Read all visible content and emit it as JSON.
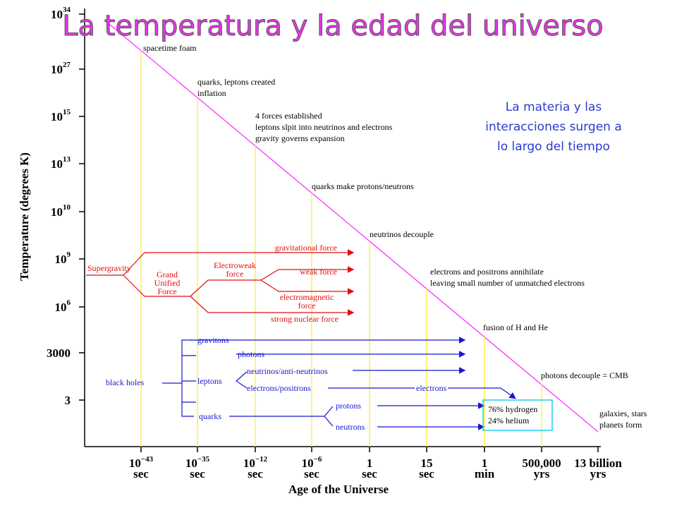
{
  "title": "La temperatura y la edad del universo",
  "note": [
    "La materia y las",
    "interacciones surgen a",
    "lo largo del tiempo"
  ],
  "y_axis": {
    "label": "Temperature (degrees K)",
    "ticks": [
      {
        "base": "10",
        "exp": "34"
      },
      {
        "base": "10",
        "exp": "27"
      },
      {
        "base": "10",
        "exp": "15"
      },
      {
        "base": "10",
        "exp": "13"
      },
      {
        "base": "10",
        "exp": "10"
      },
      {
        "base": "10",
        "exp": "9"
      },
      {
        "base": "10",
        "exp": "6"
      },
      {
        "base": "3000"
      },
      {
        "base": "3"
      }
    ]
  },
  "x_axis": {
    "label": "Age of the Universe",
    "ticks": [
      {
        "base": "10",
        "exp": "−43",
        "unit": "sec"
      },
      {
        "base": "10",
        "exp": "−35",
        "unit": "sec"
      },
      {
        "base": "10",
        "exp": "−12",
        "unit": "sec"
      },
      {
        "base": "10",
        "exp": "−6",
        "unit": "sec"
      },
      {
        "base": "1",
        "unit": "sec"
      },
      {
        "base": "15",
        "unit": "sec"
      },
      {
        "base": "1",
        "unit": "min"
      },
      {
        "base": "500,000",
        "unit": "yrs"
      },
      {
        "base": "13 billion",
        "unit": "yrs"
      }
    ]
  },
  "epochs": [
    [
      "spacetime foam"
    ],
    [
      "quarks, leptons created",
      "inflation"
    ],
    [
      "4 forces established",
      "leptons slpit into neutrinos and electrons",
      "gravity governs expansion"
    ],
    [
      "quarks make protons/neutrons"
    ],
    [
      "neutrinos decouple"
    ],
    [
      "electrons and positrons annihilate",
      "leaving small number of unmatched electrons"
    ],
    [
      "fusion of H and He"
    ],
    [
      "photons decouple = CMB"
    ],
    [
      "galaxies, stars",
      "planets form"
    ]
  ],
  "forces": {
    "supergravity": "Supergravity",
    "gut": [
      "Grand",
      "Unified",
      "Force"
    ],
    "electroweak": [
      "Electroweak",
      "force"
    ],
    "gravitational": "gravitational force",
    "weak": "weak force",
    "electromagnetic": [
      "electromagnetic",
      "force"
    ],
    "strong": "strong nuclear force"
  },
  "particles": {
    "black_holes": "black holes",
    "gravitons": "gravitons",
    "photons": "photons",
    "leptons": "leptons",
    "neutrinos": "neutrinos/anti-neutrinos",
    "electrons_positrons": "electrons/positrons",
    "electrons": "electrons",
    "quarks": "quarks",
    "protons": "protons",
    "neutrons": "neutrons",
    "composition": [
      "76% hydrogen",
      "24% helium"
    ]
  }
}
